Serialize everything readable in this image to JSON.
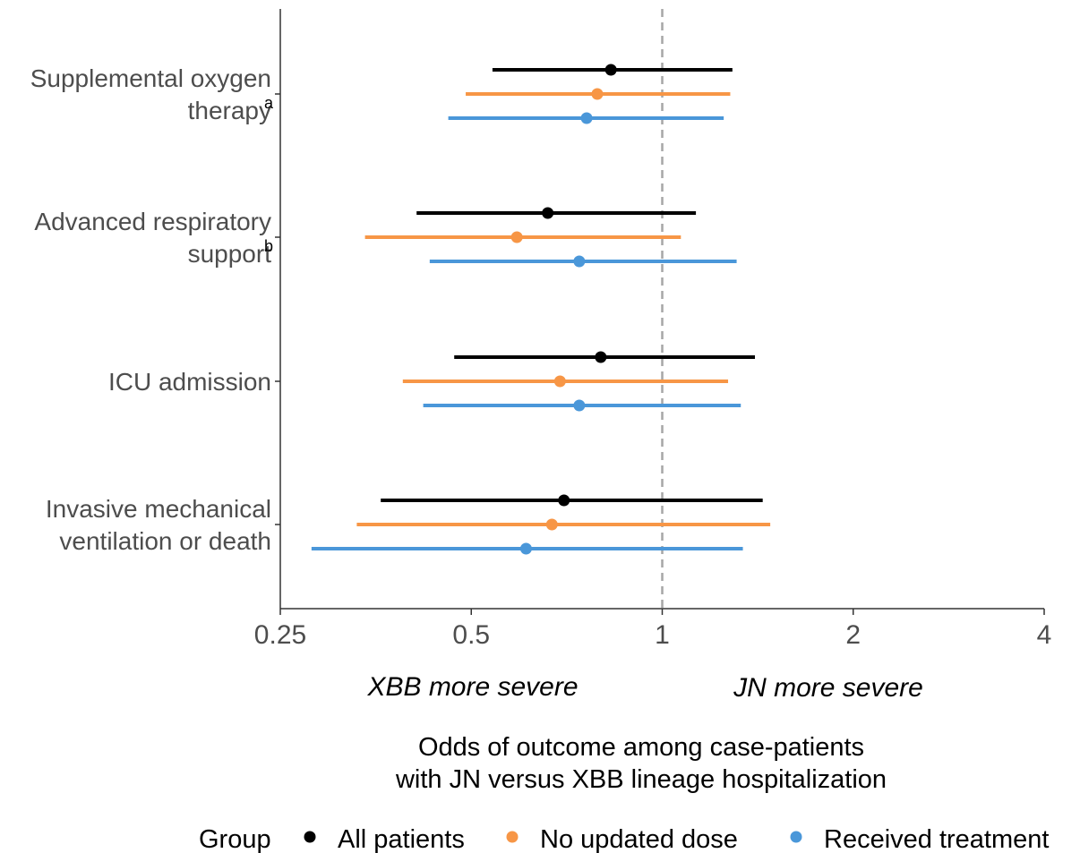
{
  "chart_data": {
    "type": "forest",
    "xlabel_lines": [
      "Odds of outcome among case-patients",
      "with JN versus XBB lineage hospitalization"
    ],
    "x_scale": "log2",
    "xlim": [
      0.25,
      4
    ],
    "x_ticks": [
      0.25,
      0.5,
      1,
      2,
      4
    ],
    "x_tick_labels": [
      "0.25",
      "0.5",
      "1",
      "2",
      "4"
    ],
    "reference_line": 1,
    "annotations": {
      "left": "XBB more severe",
      "right": "JN more severe"
    },
    "legend": {
      "title": "Group",
      "position": "bottom"
    },
    "categories": [
      {
        "lines": [
          "Supplemental oxygen",
          "therapy"
        ],
        "superscript": "a"
      },
      {
        "lines": [
          "Advanced respiratory",
          "support"
        ],
        "superscript": "b"
      },
      {
        "lines": [
          "ICU admission"
        ],
        "superscript": ""
      },
      {
        "lines": [
          "Invasive mechanical",
          "ventilation or death"
        ],
        "superscript": ""
      }
    ],
    "series": [
      {
        "name": "All patients",
        "color": "#000000",
        "estimates": [
          0.83,
          0.66,
          0.8,
          0.7
        ],
        "lower": [
          0.54,
          0.41,
          0.47,
          0.36
        ],
        "upper": [
          1.29,
          1.13,
          1.4,
          1.44
        ]
      },
      {
        "name": "No updated dose",
        "color": "#f79646",
        "estimates": [
          0.79,
          0.59,
          0.69,
          0.67
        ],
        "lower": [
          0.49,
          0.34,
          0.39,
          0.33
        ],
        "upper": [
          1.28,
          1.07,
          1.27,
          1.48
        ]
      },
      {
        "name": "Received treatment",
        "color": "#4a97d9",
        "estimates": [
          0.76,
          0.74,
          0.74,
          0.61
        ],
        "lower": [
          0.46,
          0.43,
          0.42,
          0.28
        ],
        "upper": [
          1.25,
          1.31,
          1.33,
          1.34
        ]
      }
    ]
  }
}
